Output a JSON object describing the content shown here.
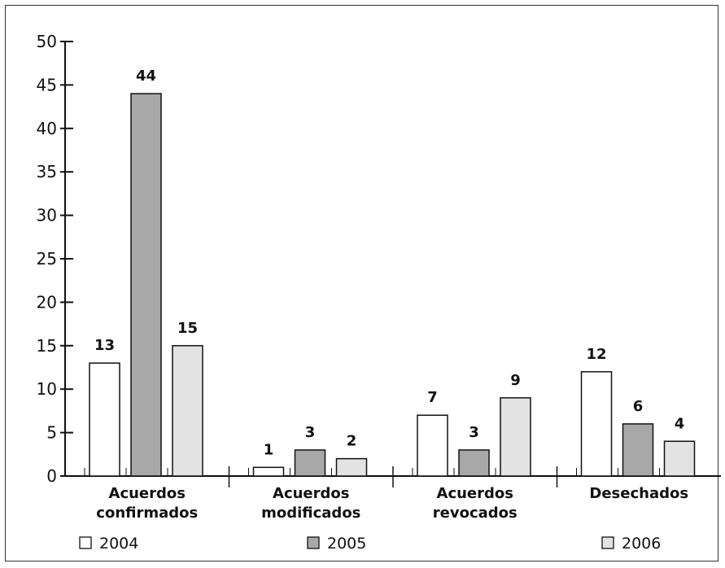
{
  "chart_data": {
    "type": "bar",
    "categories": [
      [
        "Acuerdos",
        "confirmados"
      ],
      [
        "Acuerdos",
        "modificados"
      ],
      [
        "Acuerdos",
        "revocados"
      ],
      [
        "Desechados"
      ]
    ],
    "series": [
      {
        "name": "2004",
        "values": [
          13,
          1,
          7,
          12
        ],
        "color": "#ffffff"
      },
      {
        "name": "2005",
        "values": [
          44,
          3,
          3,
          6
        ],
        "color": "#a8a8a8"
      },
      {
        "name": "2006",
        "values": [
          15,
          2,
          9,
          4
        ],
        "color": "#e3e3e3"
      }
    ],
    "ylim": [
      0,
      50
    ],
    "yticks": [
      0,
      5,
      10,
      15,
      20,
      25,
      30,
      35,
      40,
      45,
      50
    ],
    "data_labels": true,
    "grid": false,
    "legend_position": "bottom"
  }
}
